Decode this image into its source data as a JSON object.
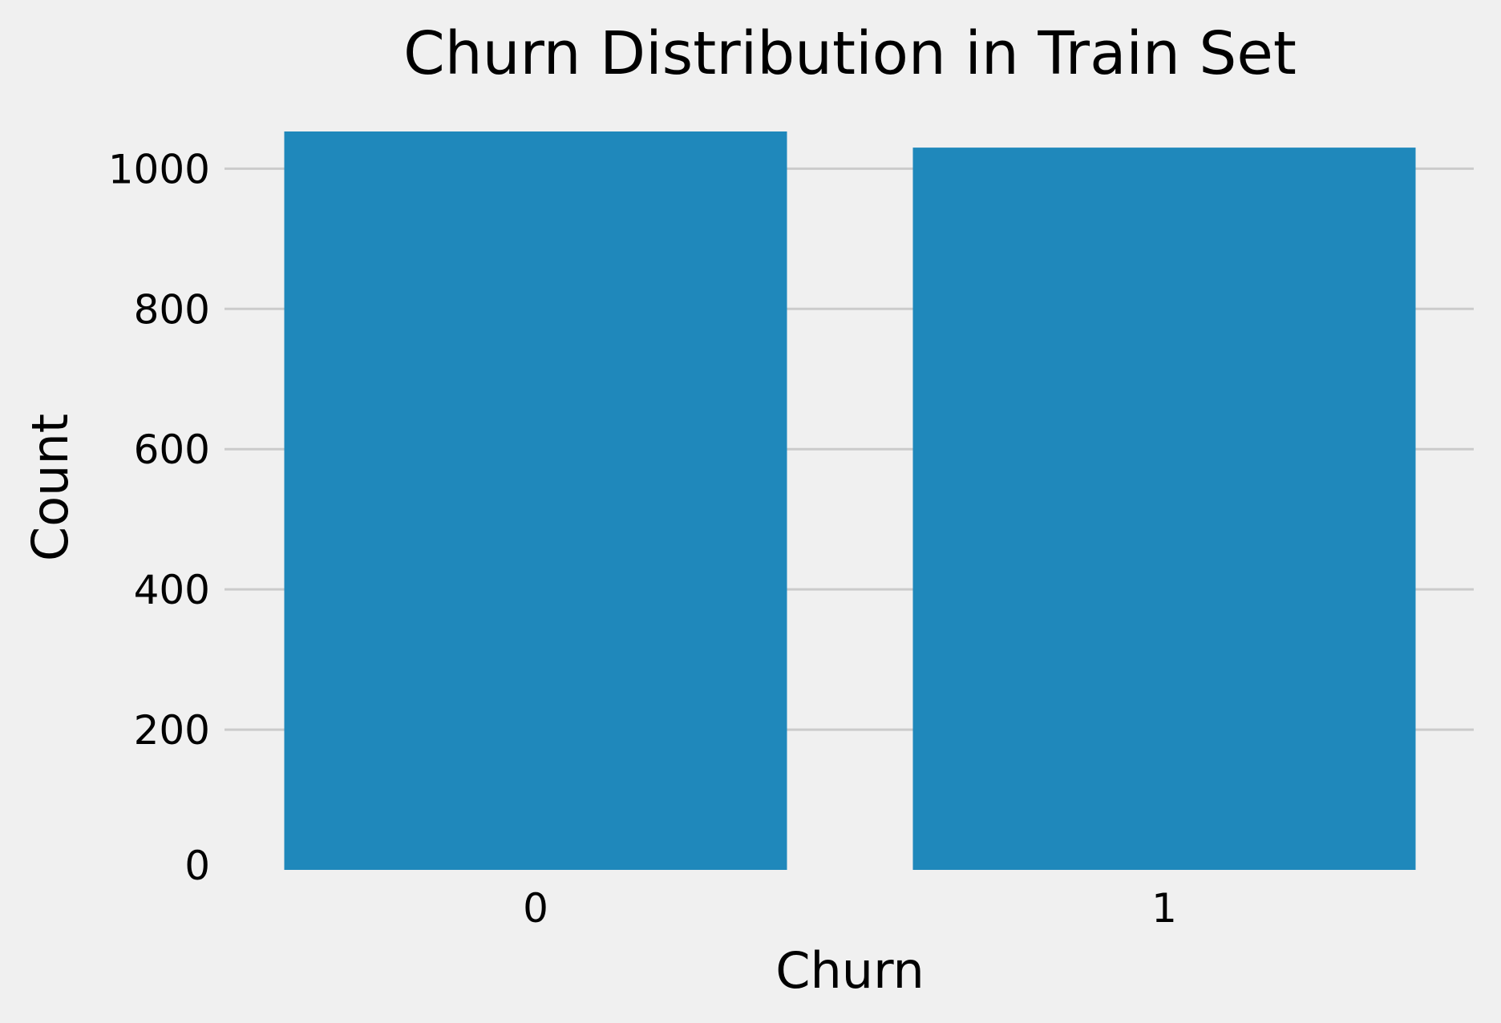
{
  "chart_data": {
    "type": "bar",
    "title": "Churn Distribution in Train Set",
    "xlabel": "Churn",
    "ylabel": "Count",
    "categories": [
      "0",
      "1"
    ],
    "values": [
      1053,
      1030
    ],
    "ylim": [
      0,
      1053
    ],
    "yticks": [
      0,
      200,
      400,
      600,
      800,
      1000
    ],
    "grid": "y",
    "bar_color": "#1f88bb",
    "background": "#f0f0f0"
  }
}
